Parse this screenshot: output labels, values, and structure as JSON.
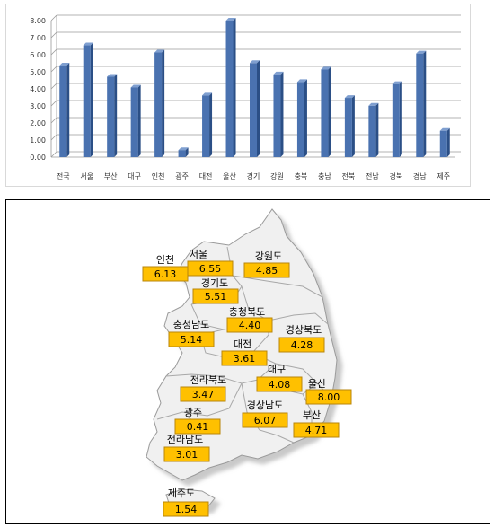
{
  "chart_data": [
    {
      "type": "bar",
      "categories": [
        "전국",
        "서울",
        "부산",
        "대구",
        "인천",
        "광주",
        "대전",
        "울산",
        "경기",
        "강원",
        "충북",
        "충남",
        "전북",
        "전남",
        "경북",
        "경남",
        "제주"
      ],
      "values": [
        5.37,
        6.55,
        4.71,
        4.08,
        6.13,
        0.41,
        3.61,
        8.0,
        5.51,
        4.85,
        4.4,
        5.14,
        3.47,
        3.01,
        4.28,
        6.07,
        1.54
      ],
      "ylim": [
        0,
        8
      ],
      "yticks": [
        "0.00",
        "1.00",
        "2.00",
        "3.00",
        "4.00",
        "5.00",
        "6.00",
        "7.00",
        "8.00"
      ],
      "grid": true,
      "bar_color": "#4a72b0"
    },
    {
      "type": "table",
      "regions": [
        {
          "name": "인천",
          "value": "6.13"
        },
        {
          "name": "서울",
          "value": "6.55"
        },
        {
          "name": "강원도",
          "value": "4.85"
        },
        {
          "name": "경기도",
          "value": "5.51"
        },
        {
          "name": "충청북도",
          "value": "4.40"
        },
        {
          "name": "충청남도",
          "value": "5.14"
        },
        {
          "name": "경상북도",
          "value": "4.28"
        },
        {
          "name": "대전",
          "value": "3.61"
        },
        {
          "name": "대구",
          "value": "4.08"
        },
        {
          "name": "울산",
          "value": "8.00"
        },
        {
          "name": "전라북도",
          "value": "3.47"
        },
        {
          "name": "경상남도",
          "value": "6.07"
        },
        {
          "name": "부산",
          "value": "4.71"
        },
        {
          "name": "광주",
          "value": "0.41"
        },
        {
          "name": "전라남도",
          "value": "3.01"
        },
        {
          "name": "제주도",
          "value": "1.54"
        }
      ],
      "label_fill": "#ffc000",
      "label_border": "#b8860b",
      "map_fill": "#f0f0f0"
    }
  ]
}
